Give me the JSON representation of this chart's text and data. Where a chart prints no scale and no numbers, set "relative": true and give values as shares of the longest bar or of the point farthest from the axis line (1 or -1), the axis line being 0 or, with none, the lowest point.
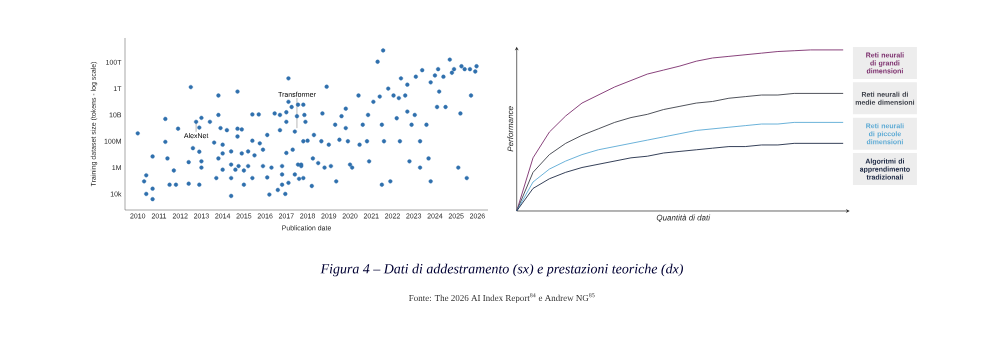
{
  "chart_data": [
    {
      "type": "scatter",
      "xlabel": "Publication date",
      "ylabel": "Training dataset size (tokens - log scale)",
      "log": "y",
      "marker": "circle",
      "color": "#2f70ad",
      "xlim": [
        2009.4,
        2026.5
      ],
      "xticks": [
        2010,
        2011,
        2012,
        2013,
        2014,
        2015,
        2016,
        2017,
        2018,
        2019,
        2020,
        2021,
        2022,
        2023,
        2024,
        2025,
        2026
      ],
      "ylim": [
        600,
        7000000000000000.0
      ],
      "yticks": [
        {
          "value": 10000.0,
          "label": "10k"
        },
        {
          "value": 1000000.0,
          "label": "1M"
        },
        {
          "value": 100000000.0,
          "label": "100M"
        },
        {
          "value": 10000000000.0,
          "label": "10B"
        },
        {
          "value": 1000000000000.0,
          "label": "1T"
        },
        {
          "value": 100000000000000.0,
          "label": "100T"
        }
      ],
      "annotations": [
        {
          "text": "AlexNet",
          "x": 2012.75,
          "y": 3000000000.0
        },
        {
          "text": "Transformer",
          "x": 2017.5,
          "y": 1000000000.0
        }
      ],
      "x": [
        2010.0,
        2010.3,
        2010.4,
        2010.4,
        2010.7,
        2010.7,
        2010.7,
        2011.3,
        2011.3,
        2011.4,
        2011.5,
        2011.7,
        2011.8,
        2011.9,
        2012.4,
        2012.4,
        2012.5,
        2012.6,
        2012.75,
        2012.9,
        2013.0,
        2013.0,
        2012.9,
        2012.9,
        2013.0,
        2013.4,
        2013.6,
        2013.7,
        2013.8,
        2013.8,
        2013.8,
        2013.9,
        2014.0,
        2014.0,
        2014.0,
        2014.2,
        2014.4,
        2014.4,
        2014.4,
        2014.4,
        2014.6,
        2014.7,
        2014.7,
        2014.7,
        2014.75,
        2014.9,
        2014.9,
        2015.0,
        2015.0,
        2015.2,
        2015.2,
        2015.4,
        2015.4,
        2015.4,
        2015.5,
        2015.7,
        2015.75,
        2015.9,
        2015.9,
        2016.1,
        2016.1,
        2016.2,
        2016.3,
        2016.45,
        2016.6,
        2016.7,
        2016.7,
        2016.8,
        2016.8,
        2016.8,
        2016.95,
        2017.0,
        2017.0,
        2017.0,
        2017.1,
        2017.1,
        2017.1,
        2017.25,
        2017.3,
        2017.4,
        2017.4,
        2017.5,
        2017.55,
        2017.6,
        2017.7,
        2017.8,
        2017.8,
        2017.55,
        2017.7,
        2017.8,
        2017.85,
        2017.9,
        2018.0,
        2018.2,
        2018.25,
        2018.3,
        2018.5,
        2018.65,
        2018.7,
        2018.8,
        2018.9,
        2019.0,
        2019.1,
        2019.3,
        2019.35,
        2019.5,
        2019.6,
        2019.8,
        2019.8,
        2019.9,
        2020.0,
        2020.1,
        2020.4,
        2020.45,
        2020.6,
        2020.8,
        2020.85,
        2020.9,
        2021.1,
        2021.3,
        2021.4,
        2021.5,
        2021.5,
        2021.56,
        2021.6,
        2021.8,
        2021.9,
        2022.05,
        2022.2,
        2022.3,
        2022.35,
        2022.4,
        2022.6,
        2022.7,
        2022.7,
        2022.8,
        2022.9,
        2023.05,
        2023.1,
        2023.3,
        2023.3,
        2023.4,
        2023.6,
        2023.7,
        2023.8,
        2023.8,
        2024.0,
        2024.1,
        2024.15,
        2024.2,
        2024.4,
        2024.5,
        2024.7,
        2024.8,
        2024.9,
        2025.1,
        2025.2,
        2025.25,
        2025.4,
        2025.5,
        2025.65,
        2025.7,
        2025.9,
        2025.96
      ],
      "values": [
        400000000.0,
        90000.0,
        260000.0,
        10000.0,
        25000.0,
        4000.0,
        7000000.0,
        5000000000.0,
        90000000.0,
        5000000.0,
        50000.0,
        600000.0,
        50000.0,
        900000000.0,
        2600000.0,
        60000.0,
        1300000000000.0,
        30000000.0,
        3000000000.0,
        16000000.0,
        3000000.0,
        1000000.0,
        50000.0,
        1100000000.0,
        6000000000.0,
        3000000000.0,
        80000000.0,
        160000.0,
        10000000000.0,
        300000000000.0,
        5000000.0,
        1000000000.0,
        55000000.0,
        700000.0,
        12000000.0,
        700000000.0,
        17000000.0,
        1700000.0,
        160000.0,
        7000.0,
        700000.0,
        600000000000.0,
        900000000.0,
        230000000.0,
        1300000.0,
        12000000.0,
        800000000.0,
        50000.0,
        600000.0,
        17000000.0,
        1300000.0,
        11000000000.0,
        160000.0,
        110000000.0,
        8500000.0,
        11000000000.0,
        70000000.0,
        23000000.0,
        1300000.0,
        300000000.0,
        180000.0,
        9000.0,
        1000000.0,
        13000000000.0,
        20000.0,
        10000000000.0,
        700000000.0,
        1300000.0,
        300000.0,
        50000.0,
        10000.0,
        16000000000.0,
        13000000.0,
        3000000000.0,
        100000000000.0,
        6000000000000.0,
        70000.0,
        40000000000.0,
        23000000.0,
        300000.0,
        550000000.0,
        8000000000.0,
        1700000.0,
        140000.0,
        1700000.0,
        60000000000.0,
        100000000.0,
        60000000000.0,
        1300000.0,
        160000.0,
        10000000000.0,
        3000000000.0,
        110000000.0,
        40000.0,
        5000000.0,
        300000000.0,
        2200000.0,
        100000000.0,
        13000000000.0,
        1000000.0,
        1400000000000.0,
        55000000.0,
        1300000.0,
        1800000000.0,
        90000.0,
        130000000.0,
        8000000000.0,
        1000000000.0,
        30000000000.0,
        100000000.0,
        1700000.0,
        1000000.0,
        300000000000.0,
        55000000.0,
        1800000000.0,
        100000000.0,
        10000000000.0,
        3000000.0,
        100000000000.0,
        110000000000000.0,
        250000000000.0,
        50000.0,
        1800000000.0,
        800000000000000.0,
        100000000.0,
        1000000000000.0,
        90000.0,
        300000000000.0,
        5600000000.0,
        190000000000.0,
        100000000.0,
        6000000000000.0,
        300000000000.0,
        18000000000.0,
        2000000000000.0,
        3000000.0,
        1800000000.0,
        10000000000.0,
        8000000000000.0,
        100000000.0,
        1000000.0,
        25000000000000.0,
        1800000000.0,
        5000000.0,
        90000.0,
        3000000000000.0,
        10000000000000.0,
        40000000000.0,
        30000000000000.0,
        600000000000.0,
        8000000000000.0,
        40000000000.0,
        160000000000000.0,
        16000000000000.0,
        30000000000000.0,
        1000000.0,
        13000000000.0,
        50000000000000.0,
        30000000000000.0,
        160000.0,
        30000000000000.0,
        300000000000.0,
        20000000000000.0,
        50000000000000.0
      ]
    },
    {
      "type": "line",
      "relative": true,
      "xlabel": "Quantità di dati",
      "ylabel": "Performance",
      "categories": [
        null,
        null,
        null,
        null,
        null,
        null,
        null,
        null,
        null,
        null,
        null,
        null,
        null,
        null,
        null,
        null,
        null,
        null,
        null,
        null,
        null
      ],
      "series": [
        {
          "name": "Reti neurali di grandi dimensioni",
          "color": "#7b2d6c",
          "values": [
            0,
            0.33,
            0.49,
            0.59,
            0.67,
            0.72,
            0.77,
            0.81,
            0.85,
            0.875,
            0.9,
            0.93,
            0.95,
            0.96,
            0.97,
            0.98,
            0.99,
            0.995,
            1.0,
            1.0,
            1.0
          ]
        },
        {
          "name": "Reti neurali di medie dimensioni",
          "color": "#3b3f48",
          "values": [
            0,
            0.24,
            0.35,
            0.42,
            0.47,
            0.51,
            0.55,
            0.58,
            0.6,
            0.63,
            0.65,
            0.67,
            0.68,
            0.7,
            0.71,
            0.72,
            0.72,
            0.73,
            0.73,
            0.73,
            0.73
          ]
        },
        {
          "name": "Reti neurali di piccole dimensioni",
          "color": "#5aa9d4",
          "values": [
            0,
            0.18,
            0.26,
            0.31,
            0.35,
            0.38,
            0.4,
            0.42,
            0.44,
            0.46,
            0.48,
            0.5,
            0.51,
            0.52,
            0.53,
            0.54,
            0.54,
            0.55,
            0.55,
            0.55,
            0.55
          ]
        },
        {
          "name": "Algoritmi di apprendimento tradizionali",
          "color": "#1e2a45",
          "values": [
            0,
            0.14,
            0.2,
            0.24,
            0.27,
            0.29,
            0.31,
            0.33,
            0.34,
            0.36,
            0.37,
            0.38,
            0.39,
            0.4,
            0.4,
            0.41,
            0.41,
            0.42,
            0.42,
            0.42,
            0.42
          ]
        }
      ]
    },
    {
      "type": "other",
      "title": "Figura 4 – Dati di addestramento (sx) e prestazioni teoriche (dx)",
      "annotations": [
        "Fonte: The 2026 AI Index Report$^{84}$ e Andrew NG$^{85}$"
      ]
    }
  ]
}
